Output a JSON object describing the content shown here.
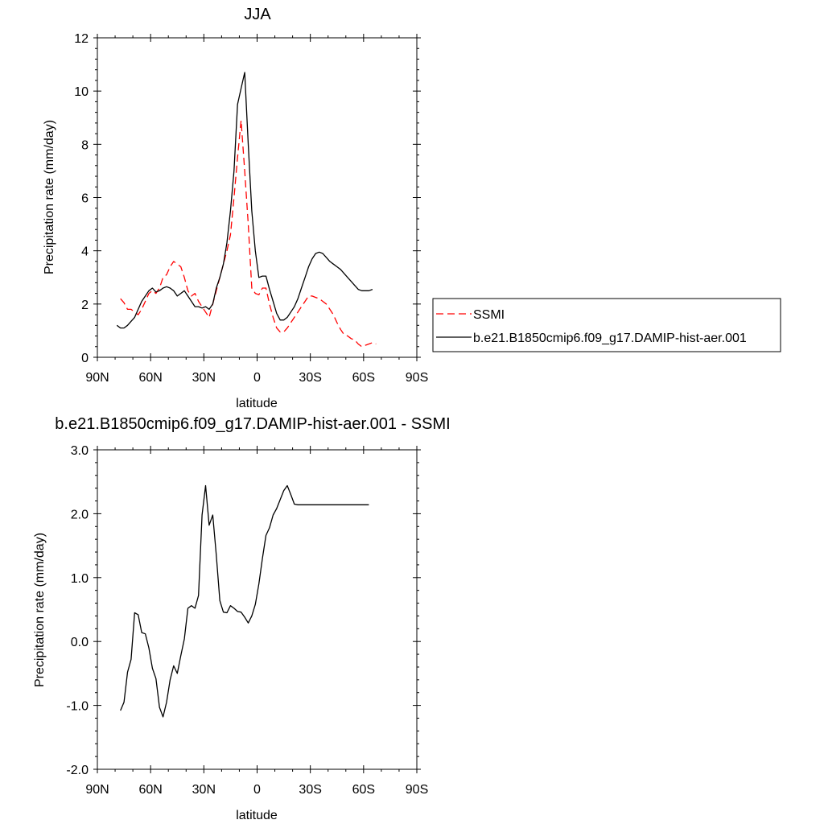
{
  "chart_data": [
    {
      "type": "line",
      "title": "JJA",
      "xlabel": "latitude",
      "ylabel": "Precipitation rate (mm/day)",
      "xlim": [
        90,
        -90
      ],
      "ylim": [
        0,
        12
      ],
      "x_ticks": [
        90,
        60,
        30,
        0,
        -30,
        -60,
        -90
      ],
      "x_tick_labels": [
        "90N",
        "60N",
        "30N",
        "0",
        "30S",
        "60S",
        "90S"
      ],
      "y_ticks": [
        0,
        2,
        4,
        6,
        8,
        10,
        12
      ],
      "y_tick_labels": [
        "0",
        "2",
        "4",
        "6",
        "8",
        "10",
        "12"
      ],
      "grid": false,
      "legend_position": "right",
      "series": [
        {
          "name": "SSMI",
          "color": "#ff0000",
          "dash": "dashed",
          "x": [
            77,
            75,
            73,
            71,
            69,
            67,
            65,
            63,
            61,
            59,
            57,
            55,
            53,
            51,
            49,
            47,
            45,
            43,
            41,
            39,
            37,
            35,
            33,
            31,
            29,
            27,
            25,
            23,
            21,
            19,
            17,
            15,
            13,
            11,
            9,
            7,
            5,
            3,
            1,
            -1,
            -3,
            -5,
            -7,
            -9,
            -11,
            -13,
            -15,
            -17,
            -19,
            -21,
            -23,
            -25,
            -27,
            -29,
            -31,
            -33,
            -35,
            -37,
            -39,
            -41,
            -43,
            -45,
            -47,
            -49,
            -51,
            -53,
            -55,
            -57,
            -59,
            -61,
            -63,
            -65,
            -67
          ],
          "y": [
            2.2,
            2.05,
            1.8,
            1.8,
            1.7,
            1.6,
            1.8,
            2.1,
            2.4,
            2.5,
            2.4,
            2.6,
            3.0,
            3.1,
            3.4,
            3.6,
            3.5,
            3.4,
            3.0,
            2.5,
            2.3,
            2.4,
            2.1,
            1.9,
            1.7,
            1.5,
            2.0,
            2.5,
            3.0,
            3.5,
            4.0,
            4.6,
            6.0,
            7.5,
            8.9,
            7.0,
            5.0,
            2.6,
            2.4,
            2.35,
            2.6,
            2.6,
            2.0,
            1.5,
            1.1,
            0.95,
            0.95,
            1.1,
            1.3,
            1.5,
            1.7,
            1.9,
            2.1,
            2.3,
            2.3,
            2.25,
            2.2,
            2.1,
            2.0,
            1.8,
            1.6,
            1.3,
            1.05,
            0.85,
            0.8,
            0.7,
            0.65,
            0.5,
            0.4,
            0.45,
            0.5,
            0.55,
            0.5
          ]
        },
        {
          "name": "b.e21.B1850cmip6.f09_g17.DAMIP-hist-aer.001",
          "color": "#000000",
          "dash": "solid",
          "x": [
            79,
            77,
            75,
            73,
            71,
            69,
            67,
            65,
            63,
            61,
            59,
            57,
            55,
            53,
            51,
            49,
            47,
            45,
            43,
            41,
            39,
            37,
            35,
            33,
            31,
            29,
            27,
            25,
            23,
            21,
            19,
            17,
            15,
            13,
            11,
            9,
            7,
            5,
            3,
            1,
            -1,
            -3,
            -5,
            -7,
            -9,
            -11,
            -13,
            -15,
            -17,
            -19,
            -21,
            -23,
            -25,
            -27,
            -29,
            -31,
            -33,
            -35,
            -37,
            -39,
            -41,
            -43,
            -45,
            -47,
            -49,
            -51,
            -53,
            -55,
            -57,
            -59,
            -61,
            -63,
            -65
          ],
          "y": [
            1.2,
            1.1,
            1.1,
            1.2,
            1.35,
            1.5,
            1.8,
            2.1,
            2.3,
            2.5,
            2.6,
            2.45,
            2.5,
            2.6,
            2.65,
            2.6,
            2.5,
            2.3,
            2.4,
            2.5,
            2.3,
            2.1,
            1.9,
            1.9,
            1.85,
            1.9,
            1.8,
            2.0,
            2.6,
            3.0,
            3.5,
            4.3,
            5.5,
            7.0,
            9.5,
            10.1,
            10.7,
            8.0,
            5.5,
            4.0,
            3.0,
            3.05,
            3.05,
            2.55,
            2.1,
            1.65,
            1.4,
            1.4,
            1.5,
            1.7,
            1.9,
            2.2,
            2.6,
            3.0,
            3.4,
            3.7,
            3.9,
            3.95,
            3.9,
            3.75,
            3.6,
            3.5,
            3.4,
            3.3,
            3.15,
            3.0,
            2.85,
            2.7,
            2.55,
            2.5,
            2.5,
            2.5,
            2.55
          ]
        }
      ]
    },
    {
      "type": "line",
      "title": "b.e21.B1850cmip6.f09_g17.DAMIP-hist-aer.001 - SSMI",
      "xlabel": "latitude",
      "ylabel": "Precipitation rate (mm/day)",
      "xlim": [
        90,
        -90
      ],
      "ylim": [
        -2.0,
        3.0
      ],
      "x_ticks": [
        90,
        60,
        30,
        0,
        -30,
        -60,
        -90
      ],
      "x_tick_labels": [
        "90N",
        "60N",
        "30N",
        "0",
        "30S",
        "60S",
        "90S"
      ],
      "y_ticks": [
        -2,
        -1,
        0,
        1,
        2,
        3
      ],
      "y_tick_labels": [
        "-2.0",
        "-1.0",
        "0.0",
        "1.0",
        "2.0",
        "3.0"
      ],
      "grid": false,
      "series": [
        {
          "color": "#000000",
          "dash": "solid",
          "x": [
            77,
            75,
            73,
            71,
            69,
            67,
            65,
            63,
            61,
            59,
            57,
            55,
            53,
            51,
            49,
            47,
            45,
            43,
            41,
            39,
            37,
            35,
            33,
            31,
            29,
            27,
            25,
            23,
            21,
            19,
            17,
            15,
            13,
            11,
            9,
            7,
            5,
            3,
            1,
            -1,
            -3,
            -5,
            -7,
            -9,
            -11,
            -13,
            -15,
            -17,
            -19,
            -21,
            -23,
            -25,
            -27,
            -29,
            -31,
            -33,
            -35,
            -37,
            -39,
            -41,
            -43,
            -45,
            -47,
            -49,
            -51,
            -53,
            -55,
            -57,
            -59,
            -61,
            -63
          ],
          "y": [
            -1.08,
            -0.95,
            -0.48,
            -0.28,
            0.45,
            0.42,
            0.14,
            0.12,
            -0.1,
            -0.42,
            -0.58,
            -1.03,
            -1.18,
            -0.95,
            -0.6,
            -0.38,
            -0.5,
            -0.22,
            0.04,
            0.52,
            0.56,
            0.52,
            0.72,
            1.98,
            2.44,
            1.82,
            1.98,
            1.35,
            0.64,
            0.46,
            0.45,
            0.56,
            0.52,
            0.47,
            0.46,
            0.38,
            0.29,
            0.4,
            0.58,
            0.9,
            1.3,
            1.66,
            1.78,
            1.98,
            2.08,
            2.22,
            2.36,
            2.44,
            2.3,
            2.15,
            2.14,
            2.14,
            2.14,
            2.14,
            2.14,
            2.14,
            2.14,
            2.14,
            2.14,
            2.14,
            2.14,
            2.14,
            2.14,
            2.14,
            2.14,
            2.14,
            2.14,
            2.14,
            2.14,
            2.14,
            2.14
          ]
        }
      ]
    }
  ]
}
